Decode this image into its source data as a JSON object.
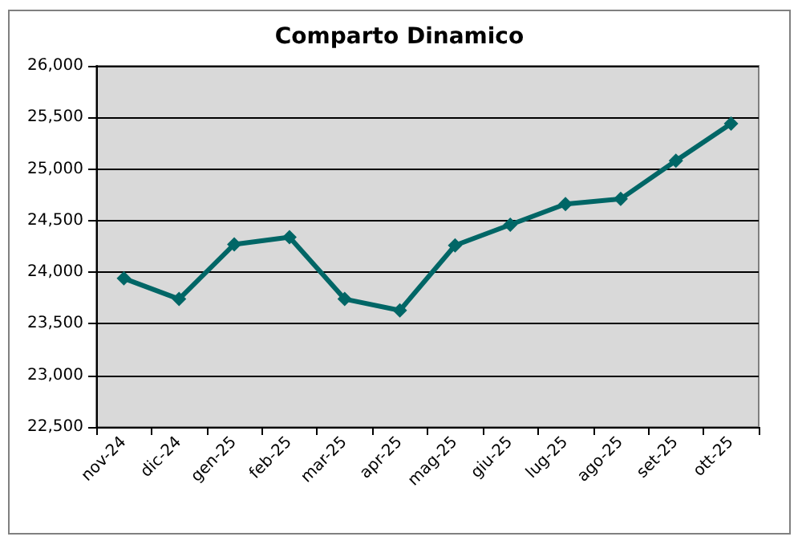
{
  "chart_data": {
    "type": "line",
    "title": "Comparto Dinamico",
    "categories": [
      "nov-24",
      "dic-24",
      "gen-25",
      "feb-25",
      "mar-25",
      "apr-25",
      "mag-25",
      "giu-25",
      "lug-25",
      "ago-25",
      "set-25",
      "ott-25"
    ],
    "series": [
      {
        "color": "#006666",
        "values": [
          23940,
          23740,
          24270,
          24340,
          23740,
          23630,
          24260,
          24460,
          24660,
          24710,
          25080,
          25440
        ]
      }
    ],
    "ylim": [
      22500,
      26000
    ],
    "yticks": [
      {
        "value": 22500,
        "label": "22,500"
      },
      {
        "value": 23000,
        "label": "23,000"
      },
      {
        "value": 23500,
        "label": "23,500"
      },
      {
        "value": 24000,
        "label": "24,000"
      },
      {
        "value": 24500,
        "label": "24,500"
      },
      {
        "value": 25000,
        "label": "25,000"
      },
      {
        "value": 25500,
        "label": "25,500"
      },
      {
        "value": 26000,
        "label": "26,000"
      }
    ],
    "grid": "y",
    "marker": "diamond",
    "line_style": "solid"
  }
}
